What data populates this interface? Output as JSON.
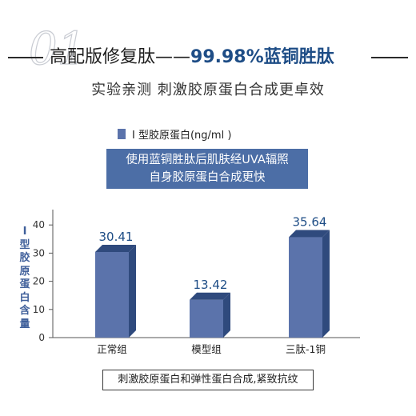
{
  "header": {
    "deco_text": "01",
    "title_prefix": "高配版修复肽——",
    "title_highlight": "99.98%蓝铜胜肽",
    "subtitle": "实验亲测 刺激胶原蛋白合成更卓效"
  },
  "annotation": {
    "line1": "使用蓝铜胜肽后肌肤经UVA辐照",
    "line2": "自身胶原蛋白合成更快"
  },
  "caption": "刺激胶原蛋白和弹性蛋白合成,紧致抗纹",
  "colors": {
    "bar_front": "#5b73ab",
    "bar_side": "#2f4a7d",
    "accent": "#1e4d86",
    "annotation_bg": "#4c6ea6"
  },
  "chart_data": {
    "type": "bar",
    "categories": [
      "正常组",
      "模型组",
      "三肽-1铜"
    ],
    "series": [
      {
        "name": "I 型胶原蛋白(ng/ml )",
        "values": [
          30.41,
          13.42,
          35.64
        ]
      }
    ],
    "data_labels": [
      "30.41",
      "13.42",
      "35.64"
    ],
    "ylabel": "I 型胶原蛋白含量",
    "yticks": [
      "0",
      "10",
      "20",
      "30",
      "40"
    ],
    "ylim": [
      0,
      45
    ],
    "legend_position": "top-left",
    "grid": false
  }
}
